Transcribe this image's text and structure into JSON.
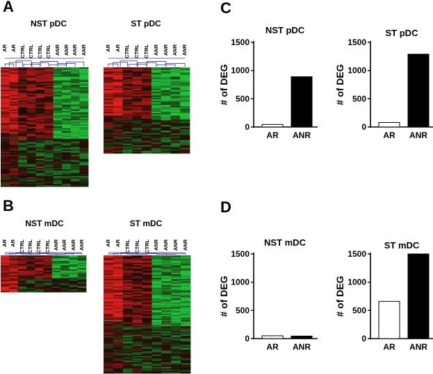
{
  "panels": {
    "A": "A",
    "B": "B",
    "C": "C",
    "D": "D"
  },
  "heatmaps": [
    {
      "id": "nst-pdc",
      "title": "NST pDC",
      "columns": [
        "AR",
        "AR",
        "CTRL",
        "CTRL",
        "CTRL",
        "CTRL",
        "ANR",
        "ANR",
        "ANR",
        "ANR"
      ]
    },
    {
      "id": "st-pdc",
      "title": "ST pDC",
      "columns": [
        "AR",
        "AR",
        "CTRL",
        "CTRL",
        "CTRL",
        "ANR",
        "ANR",
        "ANR",
        "ANR"
      ]
    },
    {
      "id": "nst-mdc",
      "title": "NST mDC",
      "columns": [
        "AR",
        "AR",
        "CTRL",
        "CTRL",
        "CTRL",
        "CTRL",
        "ANR",
        "ANR",
        "ANR",
        "ANR"
      ]
    },
    {
      "id": "st-mdc",
      "title": "ST mDC",
      "columns": [
        "AR",
        "AR",
        "CTRL",
        "CTRL",
        "CTRL",
        "ANR",
        "ANR",
        "ANR",
        "ANR"
      ]
    }
  ],
  "heatmap_colors": {
    "up": "#e0201e",
    "down": "#21c03a",
    "mid": "#1a0a06"
  },
  "chart_data": [
    {
      "type": "bar",
      "title": "NST pDC",
      "ylabel": "# of DEG",
      "categories": [
        "AR",
        "ANR"
      ],
      "values": [
        45,
        890
      ],
      "ylim": [
        0,
        1500
      ],
      "yticks": [
        0,
        500,
        1000,
        1500
      ],
      "fill": [
        "#ffffff",
        "#000000"
      ]
    },
    {
      "type": "bar",
      "title": "ST pDC",
      "ylabel": "# of DEG",
      "categories": [
        "AR",
        "ANR"
      ],
      "values": [
        80,
        1290
      ],
      "ylim": [
        0,
        1500
      ],
      "yticks": [
        0,
        500,
        1000,
        1500
      ],
      "fill": [
        "#ffffff",
        "#000000"
      ]
    },
    {
      "type": "bar",
      "title": "NST mDC",
      "ylabel": "# of DEG",
      "categories": [
        "AR",
        "ANR"
      ],
      "values": [
        50,
        45
      ],
      "ylim": [
        0,
        1500
      ],
      "yticks": [
        0,
        500,
        1000,
        1500
      ],
      "fill": [
        "#ffffff",
        "#000000"
      ]
    },
    {
      "type": "bar",
      "title": "ST mDC",
      "ylabel": "# of DEG",
      "categories": [
        "AR",
        "ANR"
      ],
      "values": [
        660,
        1510
      ],
      "ylim": [
        0,
        1500
      ],
      "yticks": [
        0,
        500,
        1000,
        1500
      ],
      "fill": [
        "#ffffff",
        "#000000"
      ]
    }
  ]
}
